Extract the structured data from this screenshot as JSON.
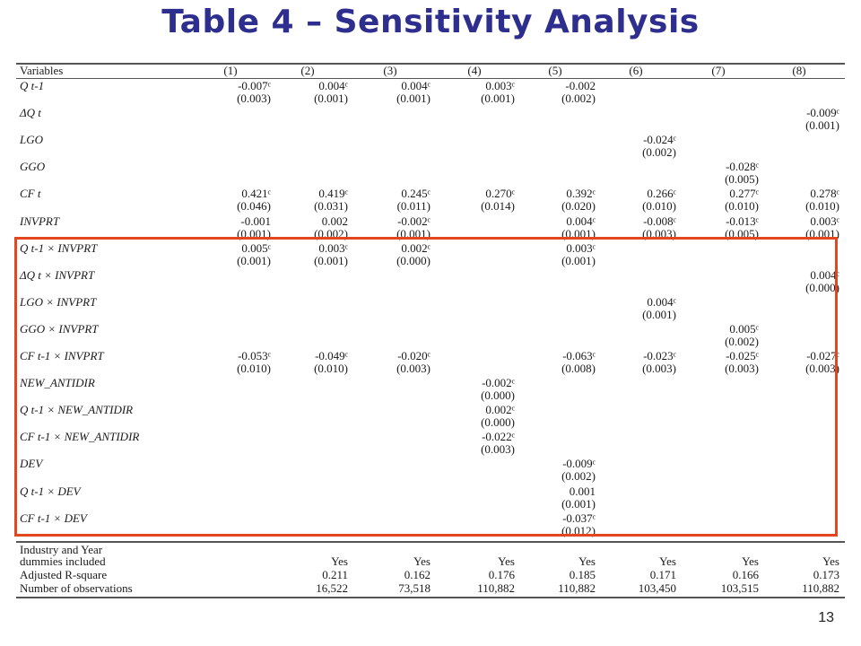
{
  "title": "Table 4 – Sensitivity Analysis",
  "page_number": "13",
  "table": {
    "headers": [
      "Variables",
      "(1)",
      "(2)",
      "(3)",
      "(4)",
      "(5)",
      "(6)",
      "(7)",
      "(8)"
    ],
    "rows": [
      {
        "label": "Q t-1",
        "italic": true,
        "coef": [
          "-0.007ᶜ",
          "0.004ᶜ",
          "0.004ᶜ",
          "0.003ᶜ",
          "-0.002",
          "",
          "",
          ""
        ],
        "se": [
          "(0.003)",
          "(0.001)",
          "(0.001)",
          "(0.001)",
          "(0.002)",
          "",
          "",
          ""
        ]
      },
      {
        "label": "ΔQ t",
        "italic": true,
        "coef": [
          "",
          "",
          "",
          "",
          "",
          "",
          "",
          "-0.009ᶜ"
        ],
        "se": [
          "",
          "",
          "",
          "",
          "",
          "",
          "",
          "(0.001)"
        ]
      },
      {
        "label": "LGO",
        "italic": true,
        "coef": [
          "",
          "",
          "",
          "",
          "",
          "-0.024ᶜ",
          "",
          ""
        ],
        "se": [
          "",
          "",
          "",
          "",
          "",
          "(0.002)",
          "",
          ""
        ]
      },
      {
        "label": "GGO",
        "italic": true,
        "coef": [
          "",
          "",
          "",
          "",
          "",
          "",
          "-0.028ᶜ",
          ""
        ],
        "se": [
          "",
          "",
          "",
          "",
          "",
          "",
          "(0.005)",
          ""
        ]
      },
      {
        "label": "CF t",
        "italic": true,
        "coef": [
          "0.421ᶜ",
          "0.419ᶜ",
          "0.245ᶜ",
          "0.270ᶜ",
          "0.392ᶜ",
          "0.266ᶜ",
          "0.277ᶜ",
          "0.278ᶜ"
        ],
        "se": [
          "(0.046)",
          "(0.031)",
          "(0.011)",
          "(0.014)",
          "(0.020)",
          "(0.010)",
          "(0.010)",
          "(0.010)"
        ]
      },
      {
        "label": "INVPRT",
        "italic": true,
        "coef": [
          "-0.001",
          "0.002",
          "-0.002ᶜ",
          "",
          "0.004ᶜ",
          "-0.008ᶜ",
          "-0.013ᶜ",
          "0.003ᶜ"
        ],
        "se": [
          "(0.001)",
          "(0.002)",
          "(0.001)",
          "",
          "(0.001)",
          "(0.003)",
          "(0.005)",
          "(0.001)"
        ]
      },
      {
        "label": "Q t-1 × INVPRT",
        "italic": true,
        "coef": [
          "0.005ᶜ",
          "0.003ᶜ",
          "0.002ᶜ",
          "",
          "0.003ᶜ",
          "",
          "",
          ""
        ],
        "se": [
          "(0.001)",
          "(0.001)",
          "(0.000)",
          "",
          "(0.001)",
          "",
          "",
          ""
        ]
      },
      {
        "label": "ΔQ t × INVPRT",
        "italic": true,
        "coef": [
          "",
          "",
          "",
          "",
          "",
          "",
          "",
          "0.004ᶜ"
        ],
        "se": [
          "",
          "",
          "",
          "",
          "",
          "",
          "",
          "(0.000)"
        ]
      },
      {
        "label": "LGO × INVPRT",
        "italic": true,
        "coef": [
          "",
          "",
          "",
          "",
          "",
          "0.004ᶜ",
          "",
          ""
        ],
        "se": [
          "",
          "",
          "",
          "",
          "",
          "(0.001)",
          "",
          ""
        ]
      },
      {
        "label": "GGO × INVPRT",
        "italic": true,
        "coef": [
          "",
          "",
          "",
          "",
          "",
          "",
          "0.005ᶜ",
          ""
        ],
        "se": [
          "",
          "",
          "",
          "",
          "",
          "",
          "(0.002)",
          ""
        ]
      },
      {
        "label": "CF t-1 × INVPRT",
        "italic": true,
        "coef": [
          "-0.053ᶜ",
          "-0.049ᶜ",
          "-0.020ᶜ",
          "",
          "-0.063ᶜ",
          "-0.023ᶜ",
          "-0.025ᶜ",
          "-0.027ᶜ"
        ],
        "se": [
          "(0.010)",
          "(0.010)",
          "(0.003)",
          "",
          "(0.008)",
          "(0.003)",
          "(0.003)",
          "(0.003)"
        ]
      },
      {
        "label": "NEW_ANTIDIR",
        "italic": true,
        "coef": [
          "",
          "",
          "",
          "-0.002ᶜ",
          "",
          "",
          "",
          ""
        ],
        "se": [
          "",
          "",
          "",
          "(0.000)",
          "",
          "",
          "",
          ""
        ]
      },
      {
        "label": "Q t-1 × NEW_ANTIDIR",
        "italic": true,
        "coef": [
          "",
          "",
          "",
          "0.002ᶜ",
          "",
          "",
          "",
          ""
        ],
        "se": [
          "",
          "",
          "",
          "(0.000)",
          "",
          "",
          "",
          ""
        ]
      },
      {
        "label": "CF t-1 × NEW_ANTIDIR",
        "italic": true,
        "coef": [
          "",
          "",
          "",
          "-0.022ᶜ",
          "",
          "",
          "",
          ""
        ],
        "se": [
          "",
          "",
          "",
          "(0.003)",
          "",
          "",
          "",
          ""
        ]
      },
      {
        "label": "DEV",
        "italic": true,
        "coef": [
          "",
          "",
          "",
          "",
          "-0.009ᶜ",
          "",
          "",
          ""
        ],
        "se": [
          "",
          "",
          "",
          "",
          "(0.002)",
          "",
          "",
          ""
        ]
      },
      {
        "label": "Q t-1 × DEV",
        "italic": true,
        "coef": [
          "",
          "",
          "",
          "",
          "0.001",
          "",
          "",
          ""
        ],
        "se": [
          "",
          "",
          "",
          "",
          "(0.001)",
          "",
          "",
          ""
        ]
      },
      {
        "label": "CF t-1 × DEV",
        "italic": true,
        "coef": [
          "",
          "",
          "",
          "",
          "-0.037ᶜ",
          "",
          "",
          ""
        ],
        "se": [
          "",
          "",
          "",
          "",
          "(0.012)",
          "",
          "",
          ""
        ]
      }
    ],
    "footer": [
      {
        "label_lines": [
          "Industry and Year",
          "dummies included"
        ],
        "values": [
          "",
          "Yes",
          "Yes",
          "Yes",
          "Yes",
          "Yes",
          "Yes",
          "Yes"
        ]
      },
      {
        "label_lines": [
          "Adjusted R-square"
        ],
        "values": [
          "",
          "0.211",
          "0.162",
          "0.176",
          "0.185",
          "0.171",
          "0.166",
          "0.173"
        ]
      },
      {
        "label_lines": [
          "Number of observations"
        ],
        "values": [
          "",
          "16,522",
          "73,518",
          "110,882",
          "110,882",
          "103,450",
          "103,515",
          "110,882"
        ]
      }
    ]
  }
}
